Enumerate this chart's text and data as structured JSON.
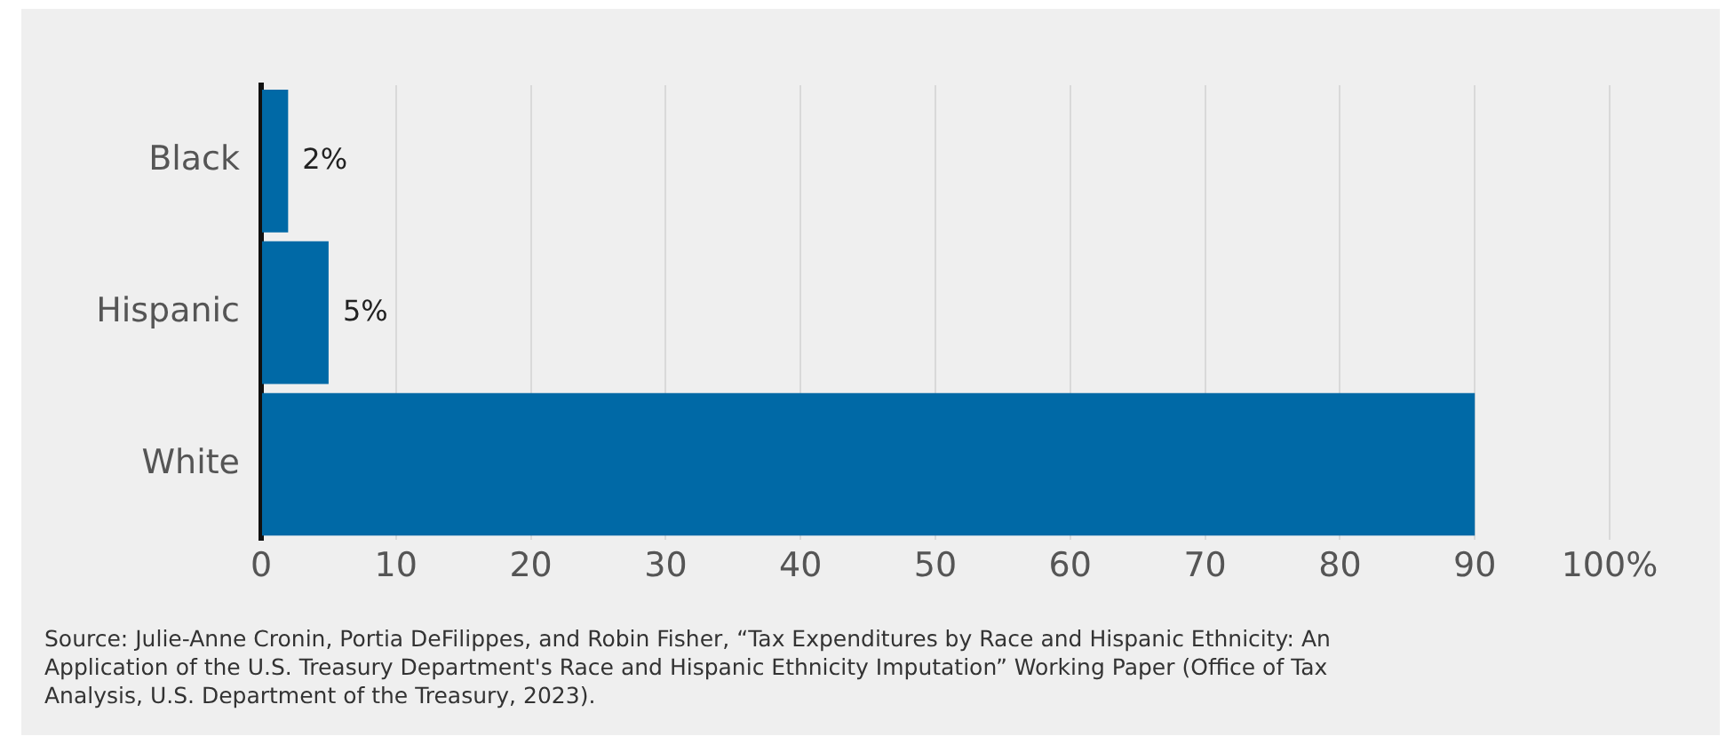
{
  "chart_data": {
    "type": "bar",
    "orientation": "horizontal",
    "categories": [
      "Black",
      "Hispanic",
      "White"
    ],
    "values": [
      2,
      5,
      90
    ],
    "color": "#0069a6",
    "value_labels": [
      "2%",
      "5%",
      null
    ],
    "xlim": [
      0,
      100
    ],
    "xticks": [
      0,
      10,
      20,
      30,
      40,
      50,
      60,
      70,
      80,
      90,
      {
        "value": 100,
        "label": "100%"
      }
    ],
    "grid": "x",
    "annotations": [
      "Source: Julie-Anne Cronin, Portia DeFilippes, and Robin Fisher, “Tax Expenditures by Race and Hispanic Ethnicity: An Application of the U.S. Treasury Department's Race and Hispanic Ethnicity Imputation” Working Paper (Office of Tax Analysis, U.S. Department of the Treasury, 2023)."
    ]
  }
}
